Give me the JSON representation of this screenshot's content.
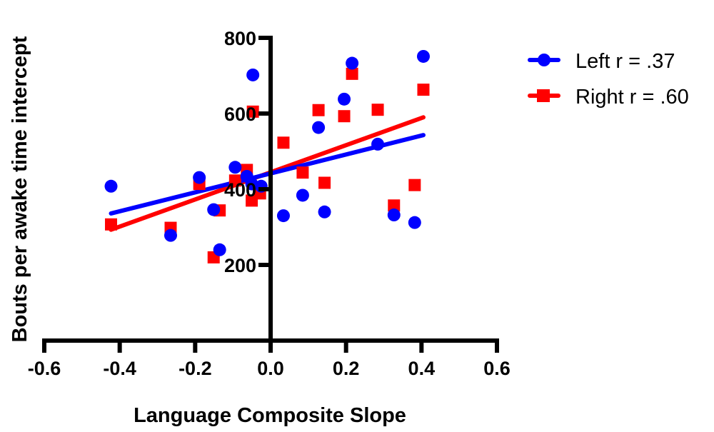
{
  "chart_data": {
    "type": "scatter",
    "title": "",
    "xlabel": "Language Composite Slope",
    "ylabel": "Bouts per awake time intercept",
    "xlim": [
      -0.6,
      0.6
    ],
    "ylim": [
      0,
      800
    ],
    "x_ticks": [
      -0.6,
      -0.4,
      -0.2,
      0.0,
      0.2,
      0.4,
      0.6
    ],
    "x_tick_labels": [
      "-0.6",
      "-0.4",
      "-0.2",
      "0.0",
      "0.2",
      "0.4",
      "0.6"
    ],
    "y_ticks": [
      200,
      400,
      600,
      800
    ],
    "y_tick_labels": [
      "200",
      "400",
      "600",
      "800"
    ],
    "grid": false,
    "legend_position": "upper right, outside plot",
    "series": [
      {
        "name": "Left r = .37",
        "color": "#0000ff",
        "marker": "circle",
        "r": 0.37,
        "points": [
          {
            "x": -0.423,
            "y": 408
          },
          {
            "x": -0.265,
            "y": 278
          },
          {
            "x": -0.189,
            "y": 431
          },
          {
            "x": -0.151,
            "y": 346
          },
          {
            "x": -0.135,
            "y": 240
          },
          {
            "x": -0.094,
            "y": 458
          },
          {
            "x": -0.063,
            "y": 434
          },
          {
            "x": -0.05,
            "y": 414
          },
          {
            "x": -0.047,
            "y": 702
          },
          {
            "x": -0.025,
            "y": 408
          },
          {
            "x": 0.034,
            "y": 330
          },
          {
            "x": 0.085,
            "y": 384
          },
          {
            "x": 0.127,
            "y": 563
          },
          {
            "x": 0.143,
            "y": 340
          },
          {
            "x": 0.195,
            "y": 638
          },
          {
            "x": 0.216,
            "y": 733
          },
          {
            "x": 0.284,
            "y": 519
          },
          {
            "x": 0.327,
            "y": 332
          },
          {
            "x": 0.382,
            "y": 312
          },
          {
            "x": 0.405,
            "y": 751
          }
        ],
        "fit_line": {
          "x": [
            -0.423,
            0.405
          ],
          "y": [
            336,
            543
          ]
        }
      },
      {
        "name": "Right r = .60",
        "color": "#ff0000",
        "marker": "square",
        "r": 0.6,
        "points": [
          {
            "x": -0.423,
            "y": 307
          },
          {
            "x": -0.265,
            "y": 298
          },
          {
            "x": -0.189,
            "y": 414
          },
          {
            "x": -0.151,
            "y": 220
          },
          {
            "x": -0.135,
            "y": 344
          },
          {
            "x": -0.094,
            "y": 423
          },
          {
            "x": -0.063,
            "y": 451
          },
          {
            "x": -0.05,
            "y": 370
          },
          {
            "x": -0.047,
            "y": 605
          },
          {
            "x": -0.028,
            "y": 389
          },
          {
            "x": 0.034,
            "y": 523
          },
          {
            "x": 0.085,
            "y": 444
          },
          {
            "x": 0.127,
            "y": 609
          },
          {
            "x": 0.143,
            "y": 417
          },
          {
            "x": 0.195,
            "y": 593
          },
          {
            "x": 0.216,
            "y": 705
          },
          {
            "x": 0.284,
            "y": 610
          },
          {
            "x": 0.327,
            "y": 357
          },
          {
            "x": 0.382,
            "y": 411
          },
          {
            "x": 0.405,
            "y": 663
          }
        ],
        "fit_line": {
          "x": [
            -0.423,
            0.405
          ],
          "y": [
            293,
            590
          ]
        }
      }
    ]
  },
  "legend": {
    "items": [
      {
        "label": "Left r = .37",
        "color": "#0000ff",
        "marker": "circle"
      },
      {
        "label": "Right r = .60",
        "color": "#ff0000",
        "marker": "square"
      }
    ]
  },
  "axes": {
    "x_title": "Language Composite Slope",
    "y_title": "Bouts per awake time intercept"
  }
}
